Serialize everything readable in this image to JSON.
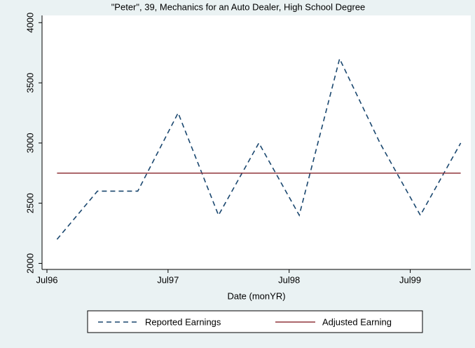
{
  "chart_data": {
    "type": "line",
    "title": "\"Peter\", 39, Mechanics for an Auto Dealer, High School Degree",
    "x_label": "Date (monYR)",
    "x": [
      "1996-08",
      "1996-12",
      "1997-04",
      "1997-08",
      "1997-12",
      "1998-04",
      "1998-08",
      "1998-12",
      "1999-04",
      "1999-08",
      "1999-12"
    ],
    "series": [
      {
        "name": "Reported Earnings",
        "color": "#1a476f",
        "dash": true,
        "values": [
          2200,
          2600,
          2600,
          3250,
          2400,
          3000,
          2400,
          3700,
          3000,
          2400,
          3000
        ]
      },
      {
        "name": "Adjusted Earning",
        "color": "#90353b",
        "dash": false,
        "values": [
          2750,
          2750,
          2750,
          2750,
          2750,
          2750,
          2750,
          2750,
          2750,
          2750,
          2750
        ]
      }
    ],
    "xlim": [
      "1996-07",
      "2000-01"
    ],
    "xticks": [
      {
        "value": "1996-07",
        "label": "Jul96"
      },
      {
        "value": "1997-07",
        "label": "Jul97"
      },
      {
        "value": "1998-07",
        "label": "Jul98"
      },
      {
        "value": "1999-07",
        "label": "Jul99"
      }
    ],
    "ylim": [
      1950,
      4060
    ],
    "yticks": [
      2000,
      2500,
      3000,
      3500,
      4000
    ],
    "legend": "bottom"
  }
}
